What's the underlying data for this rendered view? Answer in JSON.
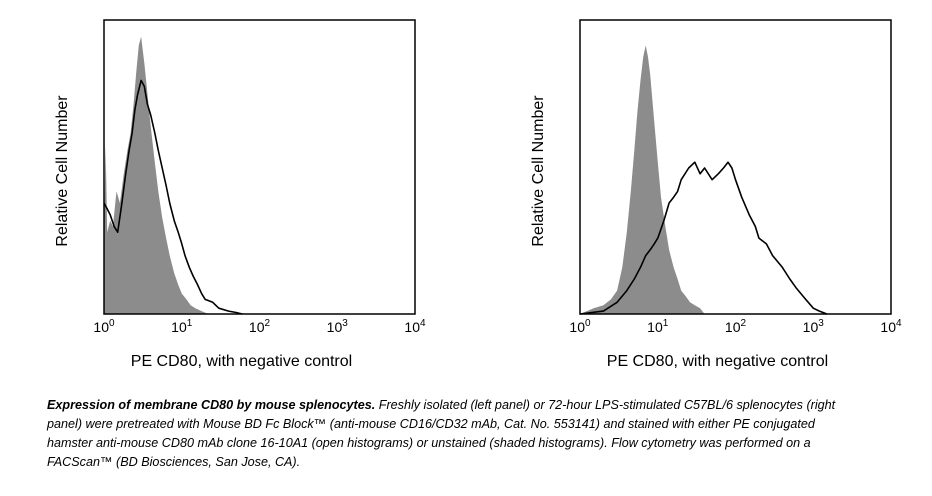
{
  "chart_data": [
    {
      "type": "histogram-overlay",
      "panel": "left",
      "xscale": "log",
      "xlim": [
        1,
        10000
      ],
      "ylim": [
        0,
        1
      ],
      "xlabel": "PE CD80, with negative control",
      "ylabel": "Relative Cell Number",
      "x_ticks": [
        {
          "base": "10",
          "exp": "0"
        },
        {
          "base": "10",
          "exp": "1"
        },
        {
          "base": "10",
          "exp": "2"
        },
        {
          "base": "10",
          "exp": "3"
        },
        {
          "base": "10",
          "exp": "4"
        }
      ],
      "series": [
        {
          "name": "unstained (shaded)",
          "style": "filled",
          "color": "#8c8c8c",
          "x": [
            1,
            1.05,
            1.1,
            1.2,
            1.3,
            1.45,
            1.6,
            1.8,
            2,
            2.2,
            2.4,
            2.6,
            2.8,
            3,
            3.3,
            3.6,
            4,
            4.5,
            5,
            5.6,
            6.3,
            7,
            8,
            9,
            10,
            11.5,
            13,
            15,
            18,
            22
          ],
          "y": [
            0.26,
            0.58,
            0.28,
            0.32,
            0.3,
            0.42,
            0.38,
            0.48,
            0.56,
            0.62,
            0.72,
            0.83,
            0.92,
            0.95,
            0.86,
            0.76,
            0.64,
            0.52,
            0.42,
            0.33,
            0.26,
            0.2,
            0.14,
            0.1,
            0.07,
            0.05,
            0.03,
            0.02,
            0.01,
            0
          ]
        },
        {
          "name": "PE CD80 (open)",
          "style": "line",
          "color": "#000000",
          "x": [
            1,
            1.1,
            1.2,
            1.35,
            1.5,
            1.7,
            1.9,
            2.1,
            2.3,
            2.5,
            2.7,
            3,
            3.3,
            3.6,
            4,
            4.5,
            5,
            5.6,
            6.3,
            7,
            8,
            9,
            10,
            11,
            12.5,
            14,
            16,
            18,
            20,
            25,
            30,
            40,
            50,
            60
          ],
          "y": [
            0.38,
            0.36,
            0.34,
            0.3,
            0.28,
            0.38,
            0.48,
            0.56,
            0.62,
            0.7,
            0.75,
            0.8,
            0.78,
            0.72,
            0.68,
            0.62,
            0.56,
            0.5,
            0.44,
            0.38,
            0.32,
            0.28,
            0.24,
            0.2,
            0.16,
            0.13,
            0.1,
            0.07,
            0.05,
            0.04,
            0.02,
            0.01,
            0.005,
            0
          ]
        }
      ]
    },
    {
      "type": "histogram-overlay",
      "panel": "right",
      "xscale": "log",
      "xlim": [
        1,
        10000
      ],
      "ylim": [
        0,
        1
      ],
      "xlabel": "PE CD80, with negative control",
      "ylabel": "Relative Cell Number",
      "x_ticks": [
        {
          "base": "10",
          "exp": "0"
        },
        {
          "base": "10",
          "exp": "1"
        },
        {
          "base": "10",
          "exp": "2"
        },
        {
          "base": "10",
          "exp": "3"
        },
        {
          "base": "10",
          "exp": "4"
        }
      ],
      "series": [
        {
          "name": "unstained (shaded)",
          "style": "filled",
          "color": "#8c8c8c",
          "x": [
            1,
            1.5,
            2,
            2.5,
            3,
            3.5,
            4,
            4.5,
            5,
            5.5,
            6,
            6.5,
            7,
            7.5,
            8,
            9,
            10,
            11,
            12.5,
            14,
            16,
            18,
            20,
            23,
            26,
            30,
            35,
            40
          ],
          "y": [
            0,
            0.02,
            0.03,
            0.05,
            0.08,
            0.16,
            0.28,
            0.42,
            0.56,
            0.7,
            0.8,
            0.88,
            0.92,
            0.88,
            0.82,
            0.66,
            0.52,
            0.4,
            0.3,
            0.22,
            0.16,
            0.12,
            0.08,
            0.06,
            0.04,
            0.03,
            0.02,
            0
          ]
        },
        {
          "name": "PE CD80 (open)",
          "style": "line",
          "color": "#000000",
          "x": [
            1,
            2,
            3,
            4,
            5,
            6,
            7,
            8,
            9,
            10,
            12,
            14,
            16,
            18,
            20,
            25,
            30,
            35,
            40,
            50,
            60,
            70,
            80,
            90,
            100,
            120,
            150,
            180,
            200,
            250,
            300,
            400,
            500,
            600,
            800,
            1000,
            1200,
            1500
          ],
          "y": [
            0,
            0.01,
            0.04,
            0.08,
            0.12,
            0.16,
            0.2,
            0.22,
            0.24,
            0.26,
            0.32,
            0.38,
            0.4,
            0.42,
            0.46,
            0.5,
            0.52,
            0.48,
            0.5,
            0.46,
            0.48,
            0.5,
            0.52,
            0.5,
            0.46,
            0.4,
            0.34,
            0.3,
            0.26,
            0.24,
            0.2,
            0.16,
            0.12,
            0.09,
            0.05,
            0.02,
            0.01,
            0
          ]
        }
      ]
    }
  ],
  "caption": {
    "bold": "Expression of membrane CD80 by mouse splenocytes.",
    "text": "Freshly isolated (left panel) or 72-hour LPS-stimulated C57BL/6 splenocytes (right panel) were pretreated with Mouse BD Fc Block™ (anti-mouse CD16/CD32 mAb, Cat. No. 553141) and stained with either PE conjugated hamster anti-mouse CD80 mAb clone 16-10A1 (open histograms) or unstained (shaded histograms).  Flow cytometry was performed on a FACScan™ (BD Biosciences, San Jose, CA)."
  }
}
